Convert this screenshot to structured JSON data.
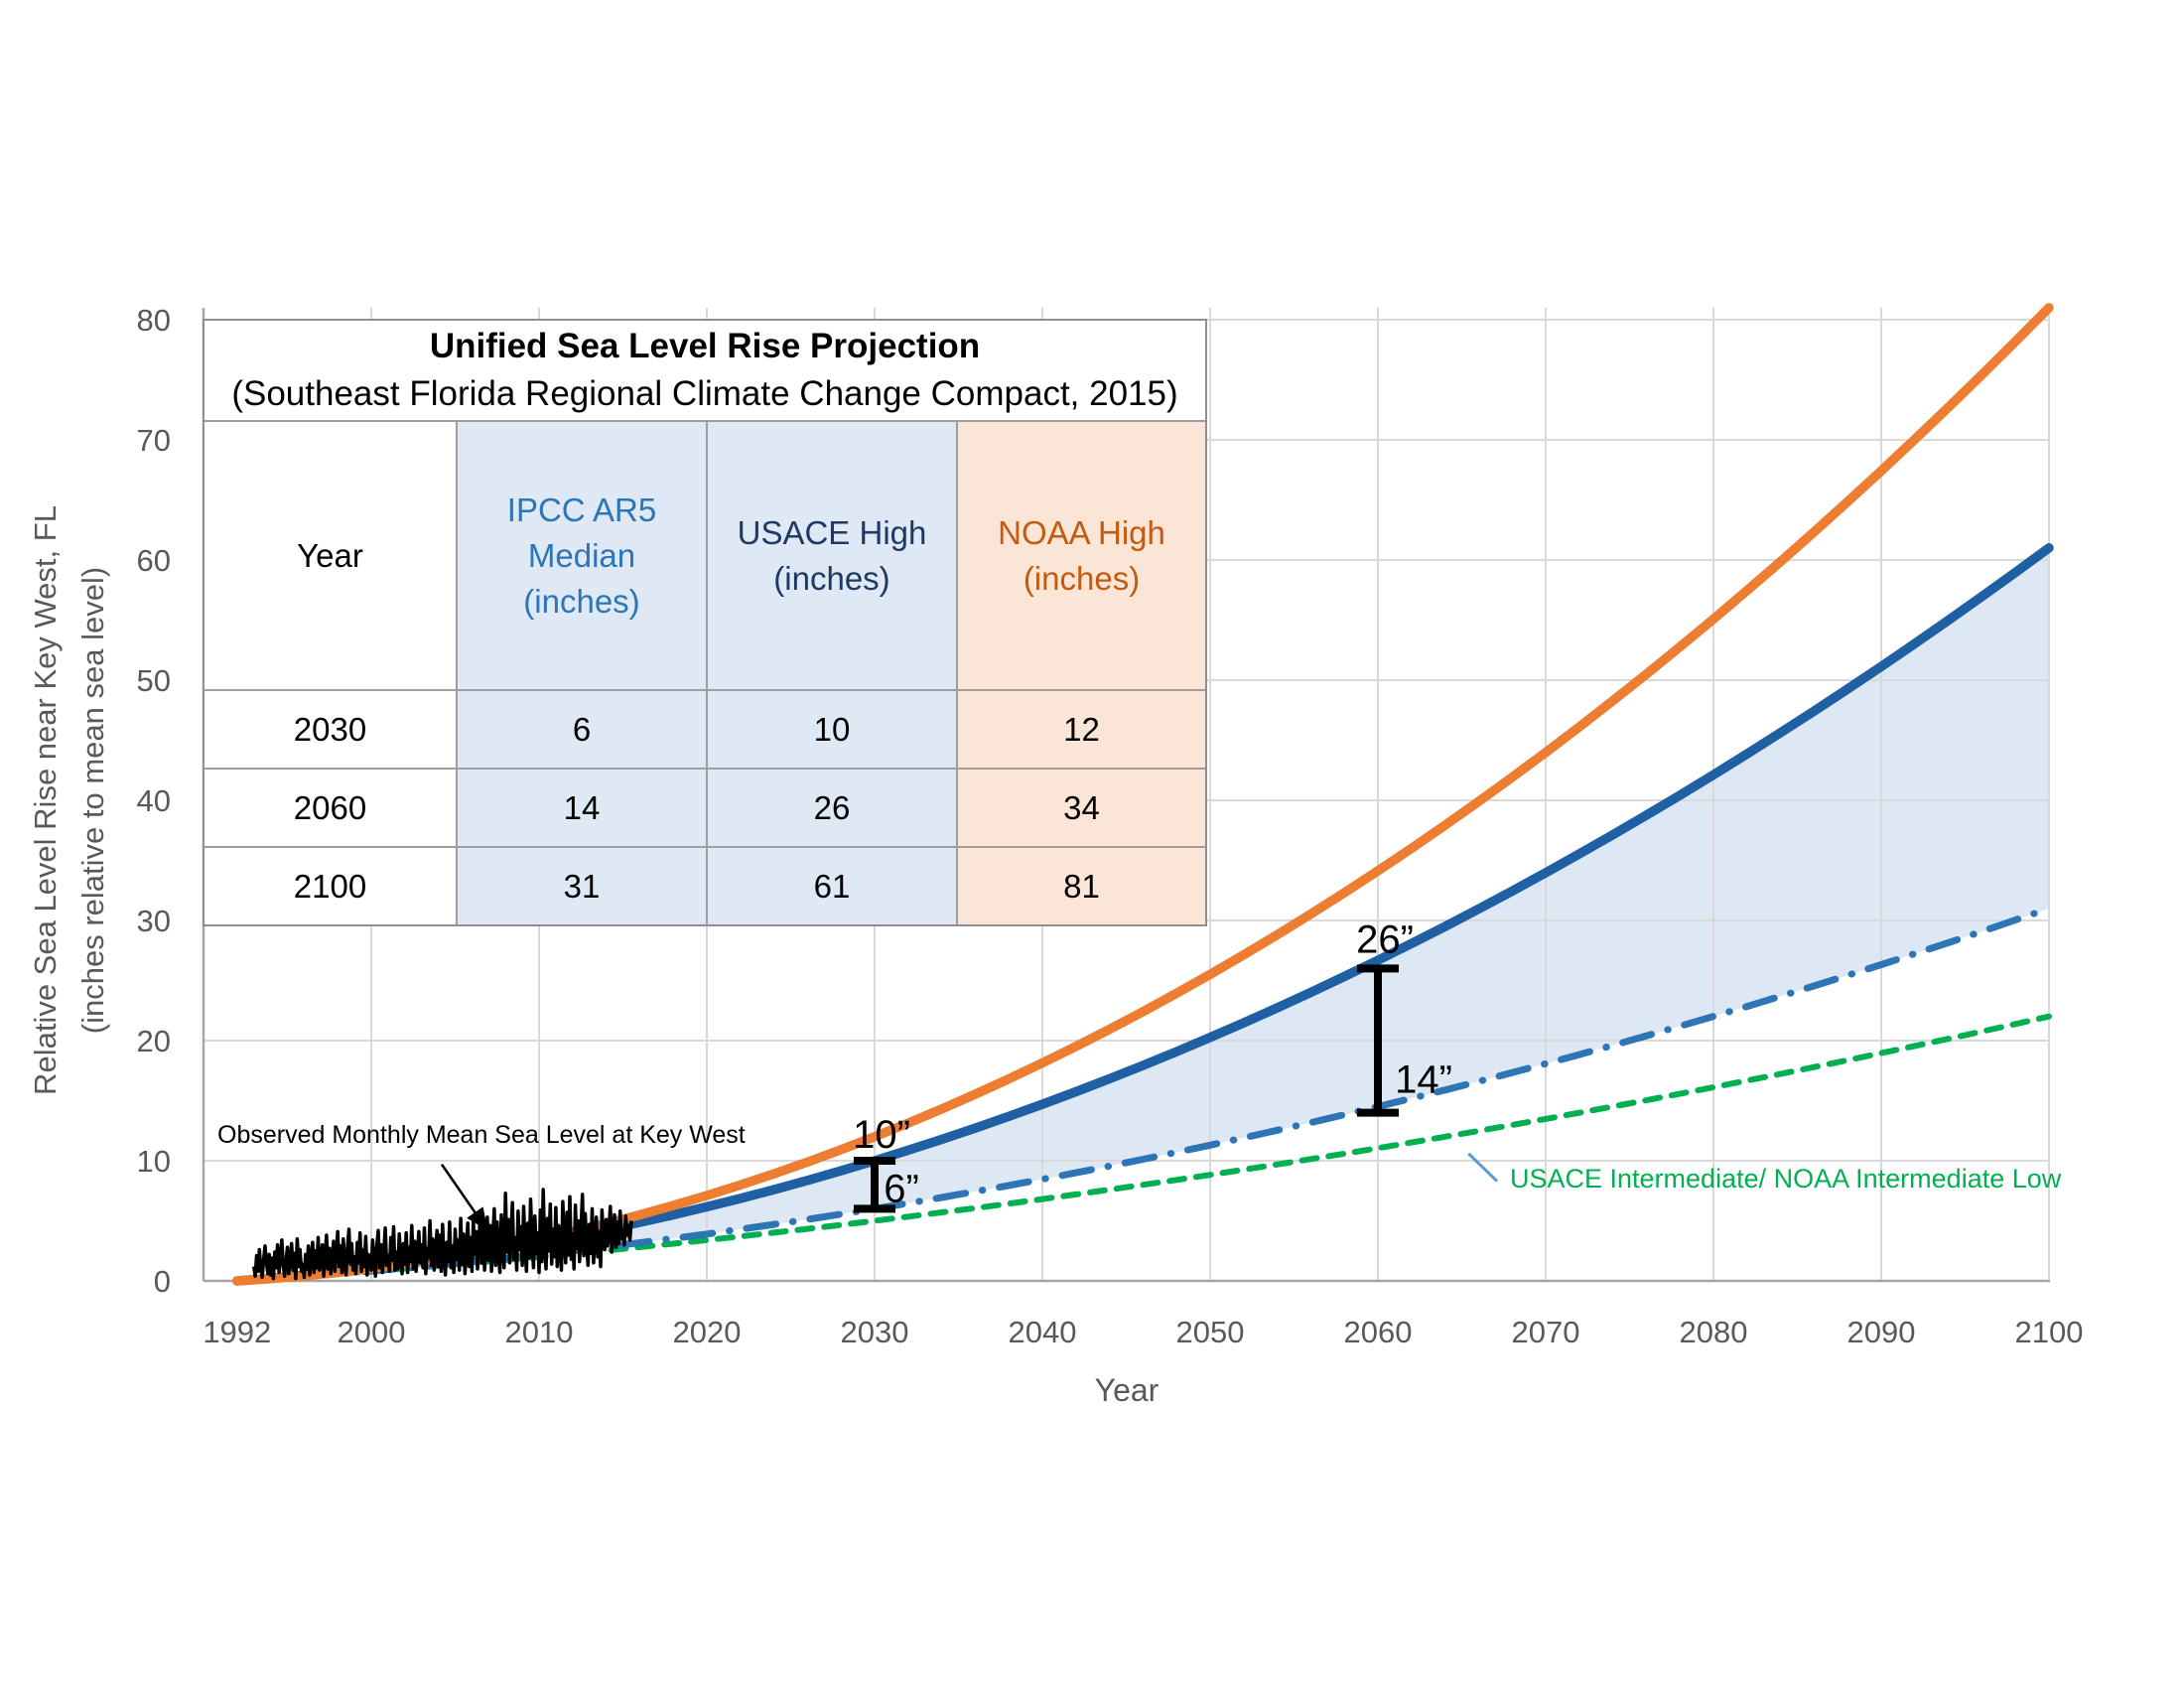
{
  "chart_data": {
    "type": "line",
    "title": "Unified Sea Level Rise Projection",
    "subtitle": "(Southeast Florida Regional Climate Change Compact, 2015)",
    "xlabel": "Year",
    "ylabel_line1": "Relative Sea Level Rise near Key West, FL",
    "ylabel_line2": "(inches relative to mean sea level)",
    "x_range": [
      1990,
      2100
    ],
    "y_range": [
      0,
      80
    ],
    "x_ticks": [
      1992,
      2000,
      2010,
      2020,
      2030,
      2040,
      2050,
      2060,
      2070,
      2080,
      2090,
      2100
    ],
    "y_ticks": [
      0,
      10,
      20,
      30,
      40,
      50,
      60,
      70,
      80
    ],
    "grid": true,
    "gridline_color": "#d9d9d9",
    "axis_color": "#a6a6a6",
    "tick_color": "#595959",
    "years_sampled": [
      1992,
      2000,
      2010,
      2020,
      2030,
      2040,
      2050,
      2060,
      2070,
      2080,
      2090,
      2100
    ],
    "series": [
      {
        "name": "USACE Intermediate/ NOAA Intermediate Low",
        "color": "#00B050",
        "style": "dashed",
        "width": 6,
        "model": {
          "base_year": 1992,
          "a": 0.0924,
          "b": 0.001031
        },
        "values": [
          0,
          0.8,
          2.0,
          3.4,
          5,
          6.8,
          8.8,
          11,
          13.5,
          16.1,
          19.0,
          22
        ]
      },
      {
        "name": "IPCC AR5 Median",
        "color": "#2E75B6",
        "style": "dashdot",
        "width": 7,
        "model": {
          "base_year": 1992,
          "a": 0.0878,
          "b": 0.001845
        },
        "values": [
          0,
          0.8,
          2.2,
          3.9,
          6,
          8.5,
          11.3,
          14,
          18.1,
          22.0,
          26.3,
          31
        ]
      },
      {
        "name": "USACE High",
        "color": "#1F5FA3",
        "style": "solid",
        "width": 9.5,
        "model": {
          "base_year": 1992,
          "a": 0.0994,
          "b": 0.00431
        },
        "values": [
          0,
          1.1,
          3.2,
          6.2,
          10,
          14.7,
          20.3,
          26,
          34.1,
          42.1,
          51.1,
          61
        ]
      },
      {
        "name": "NOAA High",
        "color": "#ED7D31",
        "style": "solid",
        "width": 9.5,
        "model": {
          "base_year": 1992,
          "a": 0.0801,
          "b": 0.006203
        },
        "values": [
          0,
          1.0,
          3.5,
          7.1,
          12,
          18.1,
          25.5,
          34,
          44.0,
          55.1,
          67.4,
          81
        ]
      }
    ],
    "band": {
      "upper": "USACE High",
      "lower": "IPCC AR5 Median",
      "color": "#DEE8F4"
    },
    "observed": {
      "label": "Observed Monthly Mean Sea Level at Key West",
      "color": "#000000",
      "start_year": 1993,
      "points_per_year": 12,
      "values": [
        1.2,
        0.4,
        2.1,
        0.8,
        2.6,
        1.0,
        0.3,
        1.8,
        2.9,
        1.5,
        0.6,
        2.2,
        0.5,
        1.9,
        0.2,
        2.4,
        1.1,
        3.0,
        0.7,
        2.0,
        3.4,
        1.3,
        0.4,
        1.6,
        2.8,
        0.6,
        1.7,
        3.1,
        0.9,
        2.3,
        0.2,
        3.5,
        1.2,
        2.6,
        0.8,
        1.4,
        0.3,
        2.2,
        1.0,
        2.9,
        0.5,
        1.8,
        3.2,
        0.7,
        2.5,
        1.1,
        3.6,
        0.9,
        1.5,
        3.0,
        0.4,
        2.1,
        3.8,
        1.0,
        2.7,
        0.6,
        1.9,
        3.3,
        0.8,
        2.4,
        4.1,
        1.2,
        2.9,
        0.7,
        3.5,
        1.6,
        0.5,
        2.8,
        4.3,
        1.4,
        3.1,
        0.9,
        2.0,
        0.6,
        3.2,
        1.5,
        4.0,
        0.8,
        2.6,
        1.2,
        3.7,
        0.5,
        2.2,
        1.8,
        0.9,
        3.4,
        1.6,
        0.4,
        2.9,
        4.2,
        1.1,
        3.0,
        0.7,
        2.5,
        4.4,
        1.3,
        2.1,
        0.8,
        3.6,
        1.7,
        4.5,
        0.9,
        2.4,
        1.0,
        3.9,
        2.0,
        0.6,
        3.1,
        1.4,
        4.0,
        0.7,
        2.8,
        1.6,
        4.6,
        1.0,
        3.3,
        0.8,
        2.2,
        4.1,
        1.5,
        3.0,
        1.1,
        4.4,
        0.6,
        2.7,
        1.9,
        5.0,
        1.3,
        3.5,
        0.9,
        2.4,
        4.2,
        1.2,
        3.8,
        0.8,
        4.7,
        2.0,
        0.5,
        3.2,
        1.6,
        4.9,
        1.1,
        2.9,
        0.7,
        4.3,
        1.8,
        3.4,
        0.9,
        5.2,
        1.4,
        3.9,
        0.6,
        2.6,
        4.8,
        1.2,
        3.6,
        0.8,
        5.0,
        2.2,
        4.1,
        1.0,
        3.3,
        5.6,
        1.5,
        4.4,
        0.9,
        2.8,
        5.3,
        1.7,
        4.6,
        0.8,
        3.7,
        6.0,
        1.3,
        4.9,
        2.1,
        0.7,
        5.5,
        3.0,
        1.1,
        7.3,
        2.4,
        5.1,
        1.5,
        4.2,
        6.5,
        1.8,
        3.6,
        0.9,
        5.8,
        2.6,
        4.5,
        1.3,
        6.2,
        2.9,
        0.8,
        4.8,
        1.9,
        6.8,
        3.2,
        1.1,
        5.4,
        2.3,
        4.0,
        0.7,
        5.9,
        1.6,
        7.6,
        3.1,
        1.0,
        5.2,
        2.5,
        6.4,
        1.4,
        4.3,
        2.0,
        6.1,
        1.2,
        4.6,
        2.8,
        0.9,
        6.6,
        3.4,
        1.5,
        5.7,
        2.2,
        7.0,
        1.8,
        3.9,
        1.0,
        6.3,
        2.7,
        5.0,
        1.6,
        4.4,
        7.2,
        2.1,
        5.6,
        3.0,
        1.3,
        4.7,
        2.3,
        6.0,
        1.5,
        3.8,
        5.3,
        2.0,
        4.1,
        1.2,
        5.9,
        3.3,
        2.6,
        5.1,
        2.9,
        4.3,
        6.2,
        2.4,
        3.7,
        5.5,
        2.8,
        4.9,
        3.1,
        5.8,
        3.5,
        4.2,
        3.0,
        5.4,
        3.8,
        4.6,
        3.4,
        5.0
      ]
    },
    "annotations": {
      "bars": [
        {
          "year": 2030,
          "lower": 6,
          "upper": 10,
          "upper_label": "10”",
          "lower_label": "6”",
          "upper_offset": [
            7,
            -13
          ],
          "lower_offset": [
            27,
            -7
          ]
        },
        {
          "year": 2060,
          "lower": 14,
          "upper": 26,
          "upper_label": "26”",
          "lower_label": "14”",
          "upper_offset": [
            7,
            -16
          ],
          "lower_offset": [
            46,
            -20
          ]
        }
      ],
      "bar_color": "#000000",
      "observed_callout": {
        "arrow": {
          "from_year": 2004.2,
          "from_in": 9.7,
          "to_year": 2006.85,
          "to_in": 4.35
        }
      },
      "series_callout": {
        "text": "USACE Intermediate/ NOAA Intermediate Low",
        "color": "#00B050",
        "pointer_color": "#5B9BD5",
        "pointer": {
          "from_year": 2065.4,
          "from_in": 10.6,
          "to_year": 2067.1,
          "to_in": 8.3
        }
      }
    }
  },
  "table": {
    "title": "Unified Sea Level Rise Projection",
    "subtitle": "(Southeast Florida Regional Climate Change Compact, 2015)",
    "columns": [
      {
        "label": "Year",
        "text_color": "#000000",
        "fill": "#FFFFFF"
      },
      {
        "label": "IPCC AR5\nMedian\n(inches)",
        "text_color": "#2E75B6",
        "fill": "#DEE9F5"
      },
      {
        "label": "USACE High\n(inches)",
        "text_color": "#1F3864",
        "fill": "#DEE9F5"
      },
      {
        "label": "NOAA High\n(inches)",
        "text_color": "#C55A11",
        "fill": "#FBE5D6"
      }
    ],
    "rows": [
      [
        "2030",
        "6",
        "10",
        "12"
      ],
      [
        "2060",
        "14",
        "26",
        "34"
      ],
      [
        "2100",
        "31",
        "61",
        "81"
      ]
    ]
  }
}
